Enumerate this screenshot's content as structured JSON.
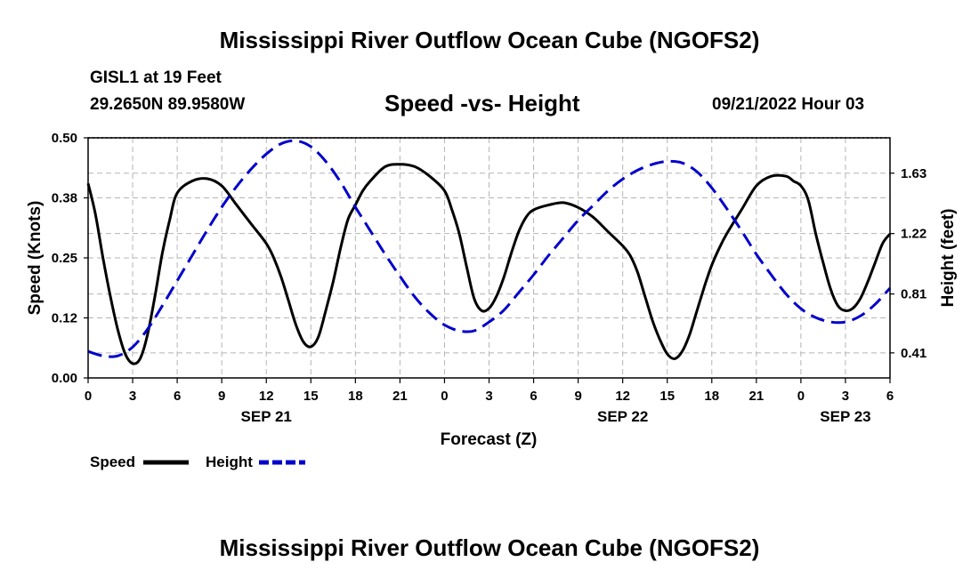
{
  "header": {
    "title": "Mississippi River Outflow Ocean Cube (NGOFS2)",
    "station": "GISL1 at 19 Feet",
    "coords": "29.2650N  89.9580W",
    "subtitle": "Speed -vs- Height",
    "datetime": "09/21/2022 Hour 03"
  },
  "footer": {
    "title": "Mississippi River Outflow Ocean Cube (NGOFS2)"
  },
  "legend": {
    "speed_label": "Speed",
    "height_label": "Height"
  },
  "colors": {
    "speed": "#000000",
    "height": "#0000cc",
    "grid": "#b4b4b4"
  },
  "chart_data": {
    "type": "line",
    "title": "Speed -vs- Height",
    "xlabel": "Forecast (Z)",
    "ylabel": "Speed (Knots)",
    "y2label": "Height (feet)",
    "xlim": [
      0,
      54
    ],
    "ylim": [
      0,
      0.5
    ],
    "y2lim": [
      0.24,
      1.87
    ],
    "grid": true,
    "x_ticks": [
      0,
      3,
      6,
      9,
      12,
      15,
      18,
      21,
      24,
      27,
      30,
      33,
      36,
      39,
      42,
      45,
      48,
      51,
      54
    ],
    "x_tick_labels": [
      "0",
      "3",
      "6",
      "9",
      "12",
      "15",
      "18",
      "21",
      "0",
      "3",
      "6",
      "9",
      "12",
      "15",
      "18",
      "21",
      "0",
      "3",
      "6"
    ],
    "date_labels": [
      {
        "x": 12,
        "label": "SEP 21"
      },
      {
        "x": 36,
        "label": "SEP 22"
      },
      {
        "x": 51,
        "label": "SEP 23"
      }
    ],
    "y_ticks": [
      0.0,
      0.125,
      0.25,
      0.375,
      0.5
    ],
    "y_tick_labels": [
      "0.00",
      "0.12",
      "0.25",
      "0.38",
      "0.50"
    ],
    "y2_ticks": [
      0.41,
      0.81,
      1.22,
      1.63
    ],
    "y2_tick_labels": [
      "0.41",
      "0.81",
      "1.22",
      "1.63"
    ],
    "series": [
      {
        "name": "Speed",
        "axis": "left",
        "style": "solid",
        "x": [
          0,
          0.5,
          1,
          1.5,
          2,
          2.5,
          3,
          3.5,
          4,
          4.5,
          5,
          5.5,
          6,
          7,
          8,
          9,
          10,
          11,
          12,
          12.5,
          13,
          13.5,
          14,
          14.5,
          15,
          15.5,
          16,
          16.5,
          17,
          17.5,
          18,
          18.5,
          19,
          20,
          21,
          22,
          23,
          24,
          24.5,
          25,
          25.5,
          26,
          26.5,
          27,
          27.5,
          28,
          28.5,
          29,
          29.5,
          30,
          31,
          32,
          33,
          34,
          35,
          36,
          36.5,
          37,
          37.5,
          38,
          38.5,
          39,
          39.5,
          40,
          40.5,
          41,
          41.5,
          42,
          42.5,
          43,
          44,
          45,
          46,
          47,
          47.5,
          48,
          48.5,
          49,
          49.5,
          50,
          50.5,
          51,
          51.5,
          52,
          52.5,
          53,
          53.5,
          54
        ],
        "values": [
          0.405,
          0.34,
          0.25,
          0.17,
          0.1,
          0.05,
          0.03,
          0.04,
          0.09,
          0.17,
          0.26,
          0.33,
          0.385,
          0.41,
          0.415,
          0.4,
          0.36,
          0.32,
          0.28,
          0.25,
          0.21,
          0.16,
          0.11,
          0.075,
          0.065,
          0.085,
          0.14,
          0.2,
          0.27,
          0.33,
          0.36,
          0.39,
          0.41,
          0.44,
          0.445,
          0.44,
          0.42,
          0.39,
          0.35,
          0.3,
          0.23,
          0.165,
          0.14,
          0.145,
          0.17,
          0.21,
          0.26,
          0.305,
          0.335,
          0.35,
          0.36,
          0.365,
          0.355,
          0.335,
          0.305,
          0.275,
          0.255,
          0.22,
          0.17,
          0.12,
          0.08,
          0.05,
          0.04,
          0.055,
          0.09,
          0.14,
          0.19,
          0.235,
          0.27,
          0.3,
          0.35,
          0.4,
          0.42,
          0.42,
          0.41,
          0.4,
          0.37,
          0.3,
          0.24,
          0.185,
          0.15,
          0.14,
          0.145,
          0.165,
          0.2,
          0.24,
          0.28,
          0.3
        ]
      },
      {
        "name": "Height",
        "axis": "right",
        "style": "dashed",
        "x": [
          0,
          1,
          2,
          3,
          4,
          5,
          6,
          7,
          8,
          9,
          10,
          11,
          12,
          13,
          14,
          15,
          16,
          17,
          18,
          19,
          20,
          21,
          22,
          23,
          24,
          25,
          26,
          27,
          28,
          29,
          30,
          31,
          32,
          33,
          34,
          35,
          36,
          37,
          38,
          39,
          40,
          41,
          42,
          43,
          44,
          45,
          46,
          47,
          48,
          49,
          50,
          51,
          52,
          53,
          54
        ],
        "values": [
          0.42,
          0.39,
          0.39,
          0.45,
          0.57,
          0.73,
          0.9,
          1.07,
          1.24,
          1.4,
          1.54,
          1.66,
          1.76,
          1.83,
          1.85,
          1.81,
          1.71,
          1.57,
          1.4,
          1.24,
          1.08,
          0.93,
          0.79,
          0.68,
          0.6,
          0.56,
          0.56,
          0.62,
          0.7,
          0.82,
          0.94,
          1.07,
          1.19,
          1.31,
          1.41,
          1.51,
          1.59,
          1.65,
          1.69,
          1.71,
          1.7,
          1.64,
          1.53,
          1.39,
          1.24,
          1.08,
          0.94,
          0.81,
          0.71,
          0.65,
          0.62,
          0.62,
          0.66,
          0.74,
          0.85
        ]
      }
    ]
  }
}
